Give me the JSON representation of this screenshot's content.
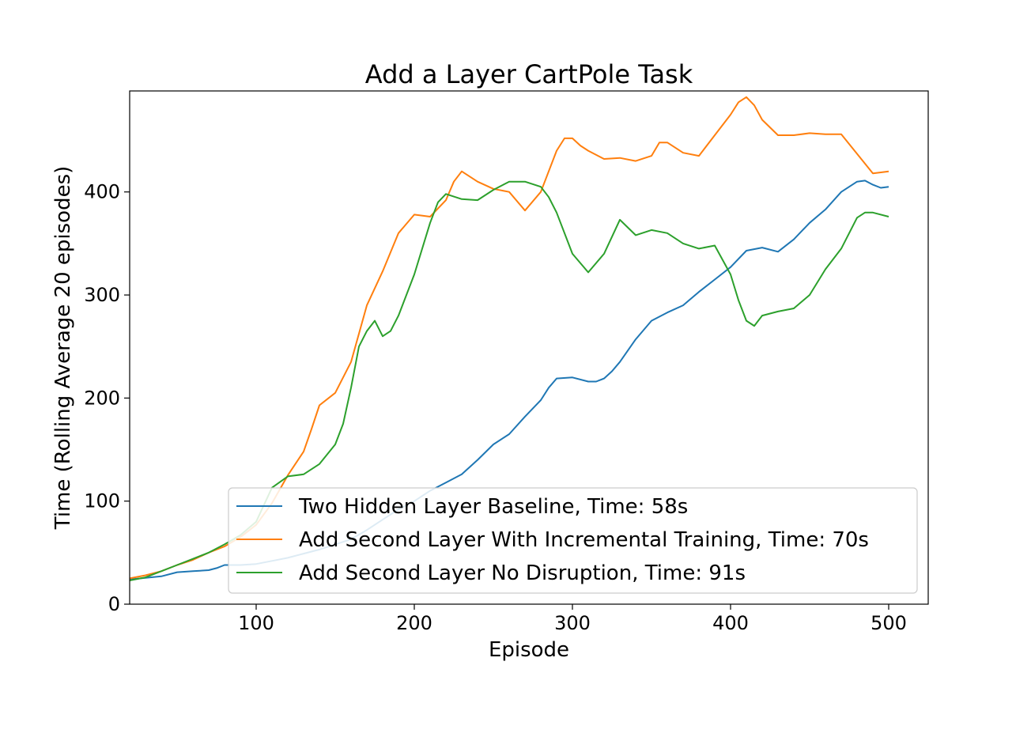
{
  "chart_data": {
    "type": "line",
    "title": "Add a Layer CartPole Task",
    "xlabel": "Episode",
    "ylabel": "Time (Rolling Average 20 episodes)",
    "xlim": [
      20,
      525
    ],
    "ylim": [
      0,
      498
    ],
    "xticks": [
      100,
      200,
      300,
      400,
      500
    ],
    "yticks": [
      0,
      100,
      200,
      300,
      400
    ],
    "grid": false,
    "legend_position": "lower-right",
    "series": [
      {
        "name": "Two Hidden Layer Baseline, Time: 58s",
        "color": "#1f77b4",
        "points": [
          [
            20,
            24
          ],
          [
            40,
            27
          ],
          [
            50,
            31
          ],
          [
            60,
            32
          ],
          [
            70,
            33
          ],
          [
            75,
            35
          ],
          [
            80,
            38
          ],
          [
            90,
            38
          ],
          [
            100,
            39
          ],
          [
            110,
            42
          ],
          [
            120,
            45
          ],
          [
            130,
            49
          ],
          [
            140,
            53
          ],
          [
            150,
            58
          ],
          [
            160,
            63
          ],
          [
            170,
            72
          ],
          [
            180,
            82
          ],
          [
            190,
            92
          ],
          [
            200,
            100
          ],
          [
            210,
            110
          ],
          [
            220,
            118
          ],
          [
            230,
            126
          ],
          [
            240,
            140
          ],
          [
            250,
            155
          ],
          [
            260,
            165
          ],
          [
            270,
            182
          ],
          [
            280,
            198
          ],
          [
            285,
            210
          ],
          [
            290,
            219
          ],
          [
            300,
            220
          ],
          [
            310,
            216
          ],
          [
            315,
            216
          ],
          [
            320,
            219
          ],
          [
            325,
            226
          ],
          [
            330,
            235
          ],
          [
            340,
            257
          ],
          [
            350,
            275
          ],
          [
            360,
            283
          ],
          [
            370,
            290
          ],
          [
            380,
            303
          ],
          [
            390,
            315
          ],
          [
            400,
            327
          ],
          [
            410,
            343
          ],
          [
            420,
            346
          ],
          [
            430,
            342
          ],
          [
            440,
            354
          ],
          [
            450,
            370
          ],
          [
            460,
            383
          ],
          [
            470,
            400
          ],
          [
            480,
            410
          ],
          [
            485,
            411
          ],
          [
            490,
            407
          ],
          [
            495,
            404
          ],
          [
            500,
            405
          ]
        ]
      },
      {
        "name": "Add Second Layer With Incremental Training, Time: 70s",
        "color": "#ff7f0e",
        "points": [
          [
            20,
            25
          ],
          [
            30,
            28
          ],
          [
            40,
            32
          ],
          [
            50,
            38
          ],
          [
            60,
            43
          ],
          [
            70,
            50
          ],
          [
            80,
            56
          ],
          [
            90,
            65
          ],
          [
            100,
            77
          ],
          [
            110,
            98
          ],
          [
            120,
            125
          ],
          [
            130,
            148
          ],
          [
            135,
            170
          ],
          [
            140,
            193
          ],
          [
            150,
            205
          ],
          [
            160,
            235
          ],
          [
            170,
            290
          ],
          [
            180,
            323
          ],
          [
            190,
            360
          ],
          [
            200,
            378
          ],
          [
            210,
            376
          ],
          [
            220,
            392
          ],
          [
            225,
            410
          ],
          [
            230,
            420
          ],
          [
            240,
            410
          ],
          [
            250,
            403
          ],
          [
            260,
            400
          ],
          [
            270,
            382
          ],
          [
            280,
            400
          ],
          [
            290,
            440
          ],
          [
            295,
            452
          ],
          [
            300,
            452
          ],
          [
            305,
            445
          ],
          [
            310,
            440
          ],
          [
            320,
            432
          ],
          [
            330,
            433
          ],
          [
            340,
            430
          ],
          [
            350,
            435
          ],
          [
            355,
            448
          ],
          [
            360,
            448
          ],
          [
            370,
            438
          ],
          [
            380,
            435
          ],
          [
            390,
            455
          ],
          [
            400,
            475
          ],
          [
            405,
            487
          ],
          [
            410,
            492
          ],
          [
            415,
            484
          ],
          [
            420,
            470
          ],
          [
            430,
            455
          ],
          [
            440,
            455
          ],
          [
            450,
            457
          ],
          [
            460,
            456
          ],
          [
            470,
            456
          ],
          [
            480,
            437
          ],
          [
            490,
            418
          ],
          [
            500,
            420
          ]
        ]
      },
      {
        "name": "Add Second Layer No Disruption, Time: 91s",
        "color": "#2ca02c",
        "points": [
          [
            20,
            23
          ],
          [
            30,
            26
          ],
          [
            40,
            32
          ],
          [
            50,
            38
          ],
          [
            60,
            44
          ],
          [
            70,
            50
          ],
          [
            80,
            58
          ],
          [
            90,
            67
          ],
          [
            100,
            80
          ],
          [
            110,
            113
          ],
          [
            120,
            124
          ],
          [
            130,
            126
          ],
          [
            140,
            136
          ],
          [
            150,
            155
          ],
          [
            155,
            175
          ],
          [
            160,
            210
          ],
          [
            165,
            250
          ],
          [
            170,
            265
          ],
          [
            175,
            275
          ],
          [
            180,
            260
          ],
          [
            185,
            265
          ],
          [
            190,
            280
          ],
          [
            200,
            320
          ],
          [
            210,
            370
          ],
          [
            215,
            390
          ],
          [
            220,
            398
          ],
          [
            230,
            393
          ],
          [
            240,
            392
          ],
          [
            250,
            402
          ],
          [
            260,
            410
          ],
          [
            270,
            410
          ],
          [
            280,
            405
          ],
          [
            285,
            395
          ],
          [
            290,
            380
          ],
          [
            300,
            340
          ],
          [
            310,
            322
          ],
          [
            320,
            340
          ],
          [
            330,
            373
          ],
          [
            340,
            358
          ],
          [
            350,
            363
          ],
          [
            360,
            360
          ],
          [
            370,
            350
          ],
          [
            380,
            345
          ],
          [
            390,
            348
          ],
          [
            400,
            320
          ],
          [
            405,
            295
          ],
          [
            410,
            275
          ],
          [
            415,
            270
          ],
          [
            420,
            280
          ],
          [
            430,
            284
          ],
          [
            440,
            287
          ],
          [
            450,
            300
          ],
          [
            460,
            325
          ],
          [
            470,
            345
          ],
          [
            480,
            375
          ],
          [
            485,
            380
          ],
          [
            490,
            380
          ],
          [
            500,
            376
          ]
        ]
      }
    ]
  }
}
